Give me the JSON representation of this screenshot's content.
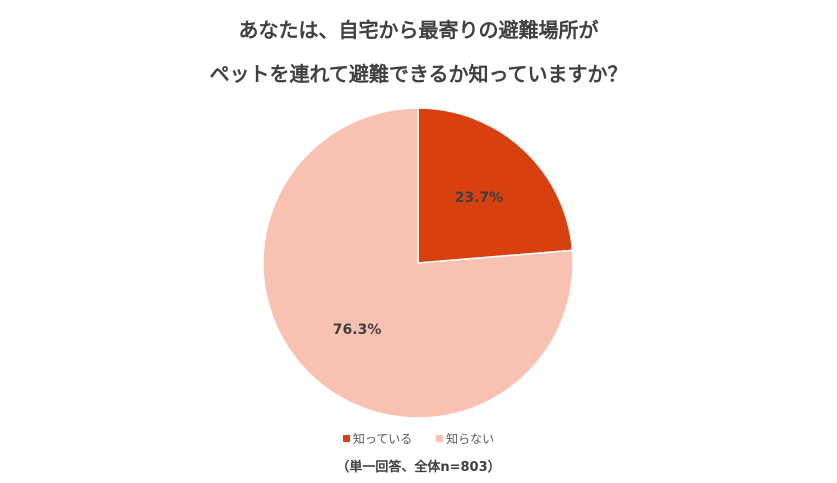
{
  "chart_data": {
    "type": "pie",
    "title": [
      "あなたは、自宅から最寄りの避難場所が",
      "ペットを連れて避難できるか知っていますか？"
    ],
    "categories": [
      "知っている",
      "知らない"
    ],
    "values": [
      23.7,
      76.3
    ],
    "data_labels": [
      "23.7%",
      "76.3%"
    ],
    "colors": [
      "#D9400F",
      "#F8C1B1"
    ],
    "legend_position": "bottom",
    "note": "（単一回答、全体n=803）"
  }
}
